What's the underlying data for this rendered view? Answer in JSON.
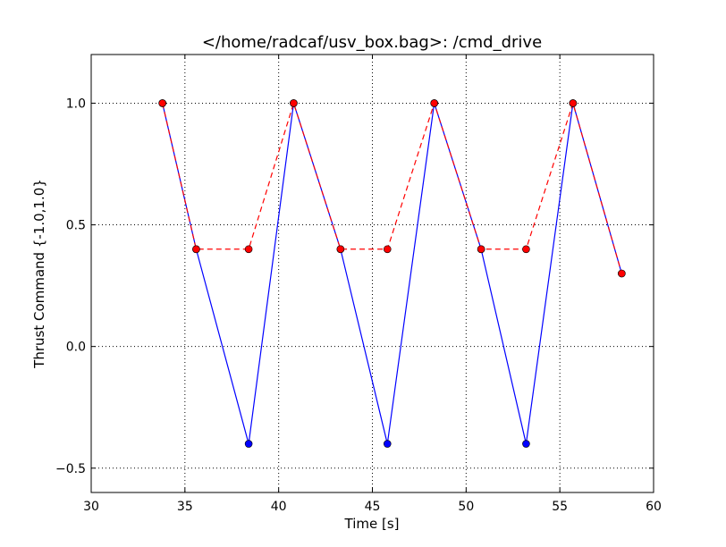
{
  "chart_data": {
    "type": "line",
    "title": "</home/radcaf/usv_box.bag>: /cmd_drive",
    "xlabel": "Time [s]",
    "ylabel": "Thrust Command {-1.0,1.0}",
    "xlim": [
      30,
      60
    ],
    "ylim": [
      -0.6,
      1.2
    ],
    "xticks": [
      30,
      35,
      40,
      45,
      50,
      55,
      60
    ],
    "xtick_labels": [
      "30",
      "35",
      "40",
      "45",
      "50",
      "55",
      "60"
    ],
    "yticks": [
      -0.5,
      0.0,
      0.5,
      1.0
    ],
    "ytick_labels": [
      "−0.5",
      "0.0",
      "0.5",
      "1.0"
    ],
    "grid": true,
    "legend": "none",
    "series": [
      {
        "color": "#0000ff",
        "line_style": "solid",
        "marker": "circle",
        "x": [
          33.8,
          35.6,
          38.4,
          40.8,
          43.3,
          45.8,
          48.3,
          50.8,
          53.2,
          55.7,
          58.3
        ],
        "y": [
          1.0,
          0.4,
          -0.4,
          1.0,
          0.4,
          -0.4,
          1.0,
          0.4,
          -0.4,
          1.0,
          0.3
        ]
      },
      {
        "color": "#ff0000",
        "line_style": "dashed",
        "marker": "circle",
        "x": [
          33.8,
          35.6,
          38.4,
          40.8,
          43.3,
          45.8,
          48.3,
          50.8,
          53.2,
          55.7,
          58.3
        ],
        "y": [
          1.0,
          0.4,
          0.4,
          1.0,
          0.4,
          0.4,
          1.0,
          0.4,
          0.4,
          1.0,
          0.3
        ]
      }
    ]
  }
}
